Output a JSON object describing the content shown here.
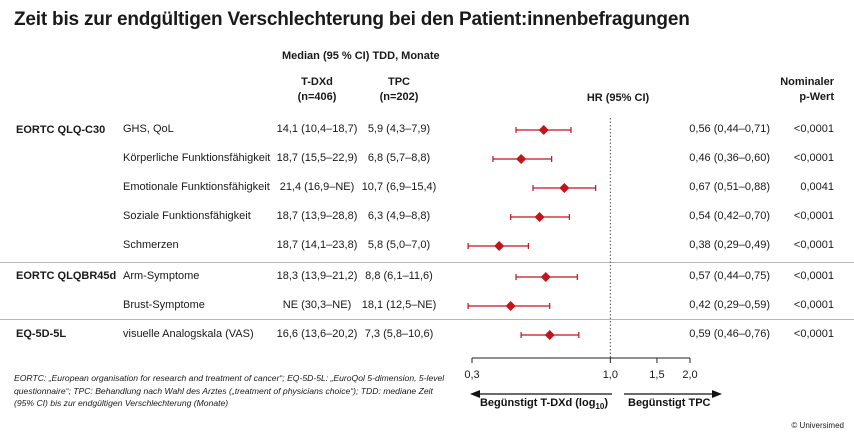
{
  "title": "Zeit bis zur endgültigen Verschlechterung bei den Patient:innenbefragungen",
  "headers": {
    "median": "Median (95 % CI) TDD, Monate",
    "tdxd_line1": "T-DXd",
    "tdxd_line2": "(n=406)",
    "tpc_line1": "TPC",
    "tpc_line2": "(n=202)",
    "hr": "HR (95% CI)",
    "p_line1": "Nominaler",
    "p_line2": "p-Wert"
  },
  "groups": [
    "EORTC QLQ-C30",
    "EORTC QLQBR45d",
    "EQ-5D-5L"
  ],
  "chart_data": {
    "type": "forest",
    "xscale": "log",
    "xlim": [
      0.3,
      2.0
    ],
    "reference_line": 1.0,
    "xticks": [
      "0,3",
      "1,0",
      "1,5",
      "2,0"
    ],
    "xtick_values": [
      0.3,
      1.0,
      1.5,
      2.0
    ],
    "xlabel_left": "Begünstigt T-DXd (log",
    "xlabel_sub": "10",
    "xlabel_mid": ")",
    "xlabel_right": "Begünstigt TPC",
    "marker_color": "#c0151b",
    "rows": [
      {
        "group": "EORTC QLQ-C30",
        "label": "GHS, QoL",
        "tdxd": "14,1 (10,4–18,7)",
        "tpc": "5,9 (4,3–7,9)",
        "hr_text": "0,56 (0,44–0,71)",
        "p": "<0,0001",
        "hr": 0.56,
        "lo": 0.44,
        "hi": 0.71
      },
      {
        "group": "",
        "label": "Körperliche Funktionsfähigkeit",
        "tdxd": "18,7 (15,5–22,9)",
        "tpc": "6,8 (5,7–8,8)",
        "hr_text": "0,46 (0,36–0,60)",
        "p": "<0,0001",
        "hr": 0.46,
        "lo": 0.36,
        "hi": 0.6
      },
      {
        "group": "",
        "label": "Emotionale Funktionsfähigkeit",
        "tdxd": "21,4 (16,9–NE)",
        "tpc": "10,7 (6,9–15,4)",
        "hr_text": "0,67 (0,51–0,88)",
        "p": "0,0041",
        "hr": 0.67,
        "lo": 0.51,
        "hi": 0.88
      },
      {
        "group": "",
        "label": "Soziale Funktionsfähigkeit",
        "tdxd": "18,7 (13,9–28,8)",
        "tpc": "6,3 (4,9–8,8)",
        "hr_text": "0,54 (0,42–0,70)",
        "p": "<0,0001",
        "hr": 0.54,
        "lo": 0.42,
        "hi": 0.7
      },
      {
        "group": "",
        "label": "Schmerzen",
        "tdxd": "18,7 (14,1–23,8)",
        "tpc": "5,8 (5,0–7,0)",
        "hr_text": "0,38 (0,29–0,49)",
        "p": "<0,0001",
        "hr": 0.38,
        "lo": 0.29,
        "hi": 0.49
      },
      {
        "group": "EORTC QLQBR45d",
        "label": "Arm-Symptome",
        "tdxd": "18,3 (13,9–21,2)",
        "tpc": "8,8 (6,1–11,6)",
        "hr_text": "0,57 (0,44–0,75)",
        "p": "<0,0001",
        "hr": 0.57,
        "lo": 0.44,
        "hi": 0.75
      },
      {
        "group": "",
        "label": "Brust-Symptome",
        "tdxd": "NE (30,3–NE)",
        "tpc": "18,1 (12,5–NE)",
        "hr_text": "0,42 (0,29–0,59)",
        "p": "<0,0001",
        "hr": 0.42,
        "lo": 0.29,
        "hi": 0.59
      },
      {
        "group": "EQ-5D-5L",
        "label": "visuelle Analogskala (VAS)",
        "tdxd": "16,6 (13,6–20,2)",
        "tpc": "7,3 (5,8–10,6)",
        "hr_text": "0,59 (0,46–0,76)",
        "p": "<0,0001",
        "hr": 0.59,
        "lo": 0.46,
        "hi": 0.76
      }
    ]
  },
  "footnote": "EORTC: „European organisation for research and treatment of cancer“; EQ-5D-5L: „EuroQol 5-dimension, 5-level questionnaire“; TPC: Behandlung nach Wahl des Arztes („treatment of physicians choice“); TDD: mediane Zeit (95% CI) bis zur endgültigen Verschlechterung (Monate)",
  "copyright": "© Universimed"
}
